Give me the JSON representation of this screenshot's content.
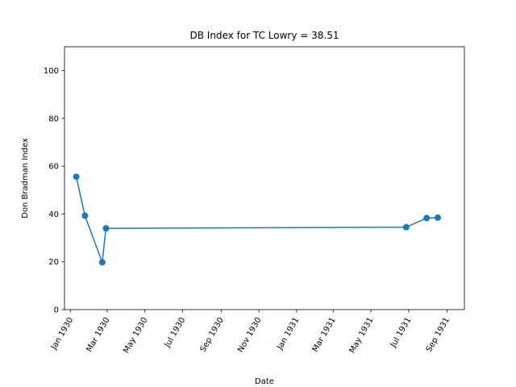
{
  "chart_data": {
    "type": "line",
    "title": "DB Index for TC Lowry = 38.51",
    "xlabel": "Date",
    "ylabel": "Don Bradman Index",
    "ylim": [
      0,
      110
    ],
    "xlim": [
      "1929-12-22",
      "1931-09-29"
    ],
    "grid": false,
    "color": "#1f77b4",
    "y_ticks": [
      0,
      20,
      40,
      60,
      80,
      100
    ],
    "x_ticks": [
      {
        "date": "1930-01-01",
        "label": "Jan 1930"
      },
      {
        "date": "1930-03-01",
        "label": "Mar 1930"
      },
      {
        "date": "1930-05-01",
        "label": "May 1930"
      },
      {
        "date": "1930-07-01",
        "label": "Jul 1930"
      },
      {
        "date": "1930-09-01",
        "label": "Sep 1930"
      },
      {
        "date": "1930-11-01",
        "label": "Nov 1930"
      },
      {
        "date": "1931-01-01",
        "label": "Jan 1931"
      },
      {
        "date": "1931-03-01",
        "label": "Mar 1931"
      },
      {
        "date": "1931-05-01",
        "label": "May 1931"
      },
      {
        "date": "1931-07-01",
        "label": "Jul 1931"
      },
      {
        "date": "1931-09-01",
        "label": "Sep 1931"
      }
    ],
    "series": [
      {
        "points": [
          {
            "x": "1930-01-10",
            "y": 55.6
          },
          {
            "x": "1930-01-24",
            "y": 39.3
          },
          {
            "x": "1930-02-21",
            "y": 19.8
          },
          {
            "x": "1930-02-27",
            "y": 34.0
          },
          {
            "x": "1931-06-27",
            "y": 34.5
          },
          {
            "x": "1931-07-30",
            "y": 38.3
          },
          {
            "x": "1931-08-17",
            "y": 38.5
          }
        ]
      }
    ]
  }
}
